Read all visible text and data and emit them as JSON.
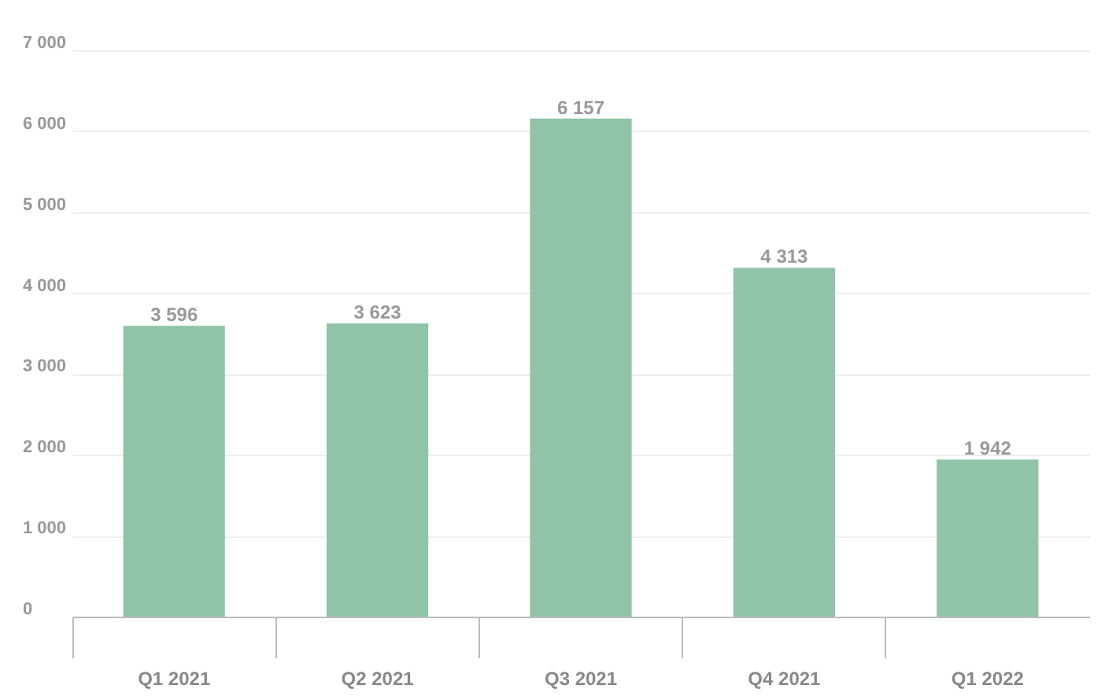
{
  "chart_data": {
    "type": "bar",
    "categories": [
      "Q1 2021",
      "Q2 2021",
      "Q3 2021",
      "Q4 2021",
      "Q1 2022"
    ],
    "values": [
      3596,
      3623,
      6157,
      4313,
      1942
    ],
    "value_labels": [
      "3 596",
      "3 623",
      "6 157",
      "4 313",
      "1 942"
    ],
    "color": "#8fc4a8",
    "ylim": [
      0,
      7000
    ],
    "yticks": [
      {
        "value": 0,
        "label": "0"
      },
      {
        "value": 1000,
        "label": "1 000"
      },
      {
        "value": 2000,
        "label": "2 000"
      },
      {
        "value": 3000,
        "label": "3 000"
      },
      {
        "value": 4000,
        "label": "4 000"
      },
      {
        "value": 5000,
        "label": "5 000"
      },
      {
        "value": 6000,
        "label": "6 000"
      },
      {
        "value": 7000,
        "label": "7 000"
      }
    ],
    "grid": "y"
  }
}
